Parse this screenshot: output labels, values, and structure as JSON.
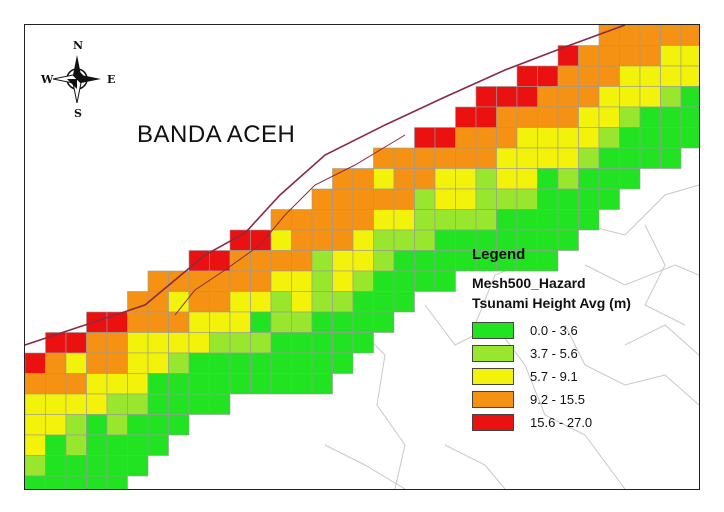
{
  "map": {
    "place_label": "BANDA ACEH",
    "compass": {
      "north": "N",
      "south": "S",
      "east": "E",
      "west": "W",
      "icon": "compass-rose-icon"
    },
    "colors": {
      "grid_line": "#9a9a9a",
      "road": "#8b2a45",
      "district_boundary": "#c8c8c8"
    }
  },
  "legend": {
    "title": "Legend",
    "layer": "Mesh500_Hazard",
    "field": "Tsunami Height Avg (m)",
    "classes": [
      {
        "label": "0.0 - 3.6",
        "color": "#21e321"
      },
      {
        "label": "3.7 - 5.6",
        "color": "#99e62e"
      },
      {
        "label": "5.7 - 9.1",
        "color": "#f2f20a"
      },
      {
        "label": "9.2 - 15.5",
        "color": "#f59214"
      },
      {
        "label": "15.6 - 27.0",
        "color": "#eb1111"
      }
    ]
  }
}
